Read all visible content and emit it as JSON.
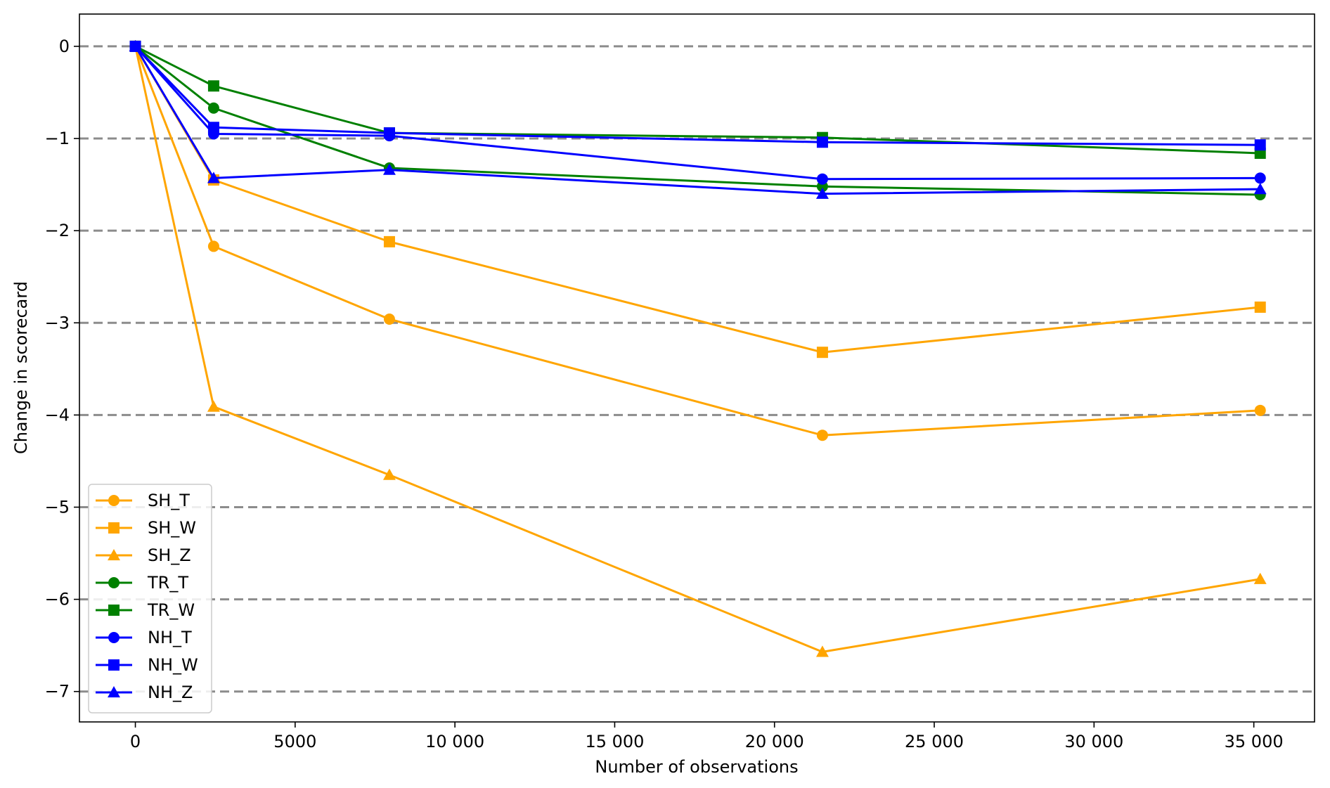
{
  "chart_data": {
    "type": "line",
    "title": "",
    "xlabel": "Number of observations",
    "ylabel": "Change in scorecard",
    "xlim": [
      -1750,
      36900
    ],
    "ylim": [
      -7.33,
      0.35
    ],
    "xticks": [
      0,
      5000,
      10000,
      15000,
      20000,
      25000,
      30000,
      35000
    ],
    "xtick_labels": [
      "0",
      "5000",
      "10 000",
      "15 000",
      "20 000",
      "25 000",
      "30 000",
      "35 000"
    ],
    "yticks": [
      0,
      -1,
      -2,
      -3,
      -4,
      -5,
      -6,
      -7
    ],
    "ytick_labels": [
      "0",
      "−1",
      "−2",
      "−3",
      "−4",
      "−5",
      "−6",
      "−7"
    ],
    "horizontal_gridlines": "dashed, at every y tick",
    "legend_position": "lower-left",
    "x": [
      0,
      2450,
      7950,
      21500,
      35200
    ],
    "series": [
      {
        "name": "SH_T",
        "color": "#FFA500",
        "marker": "circle",
        "values": [
          0,
          -2.17,
          -2.96,
          -4.22,
          -3.95
        ]
      },
      {
        "name": "SH_W",
        "color": "#FFA500",
        "marker": "square",
        "values": [
          0,
          -1.45,
          -2.12,
          -3.32,
          -2.83
        ]
      },
      {
        "name": "SH_Z",
        "color": "#FFA500",
        "marker": "triangle",
        "values": [
          0,
          -3.91,
          -4.65,
          -6.57,
          -5.78
        ]
      },
      {
        "name": "TR_T",
        "color": "#008000",
        "marker": "circle",
        "values": [
          0,
          -0.67,
          -1.32,
          -1.52,
          -1.61
        ]
      },
      {
        "name": "TR_W",
        "color": "#008000",
        "marker": "square",
        "values": [
          0,
          -0.43,
          -0.94,
          -0.99,
          -1.16
        ]
      },
      {
        "name": "NH_T",
        "color": "#0000FF",
        "marker": "circle",
        "values": [
          0,
          -0.95,
          -0.97,
          -1.44,
          -1.43
        ]
      },
      {
        "name": "NH_W",
        "color": "#0000FF",
        "marker": "square",
        "values": [
          0,
          -0.88,
          -0.94,
          -1.04,
          -1.07
        ]
      },
      {
        "name": "NH_Z",
        "color": "#0000FF",
        "marker": "triangle",
        "values": [
          0,
          -1.43,
          -1.34,
          -1.6,
          -1.55
        ]
      }
    ]
  }
}
